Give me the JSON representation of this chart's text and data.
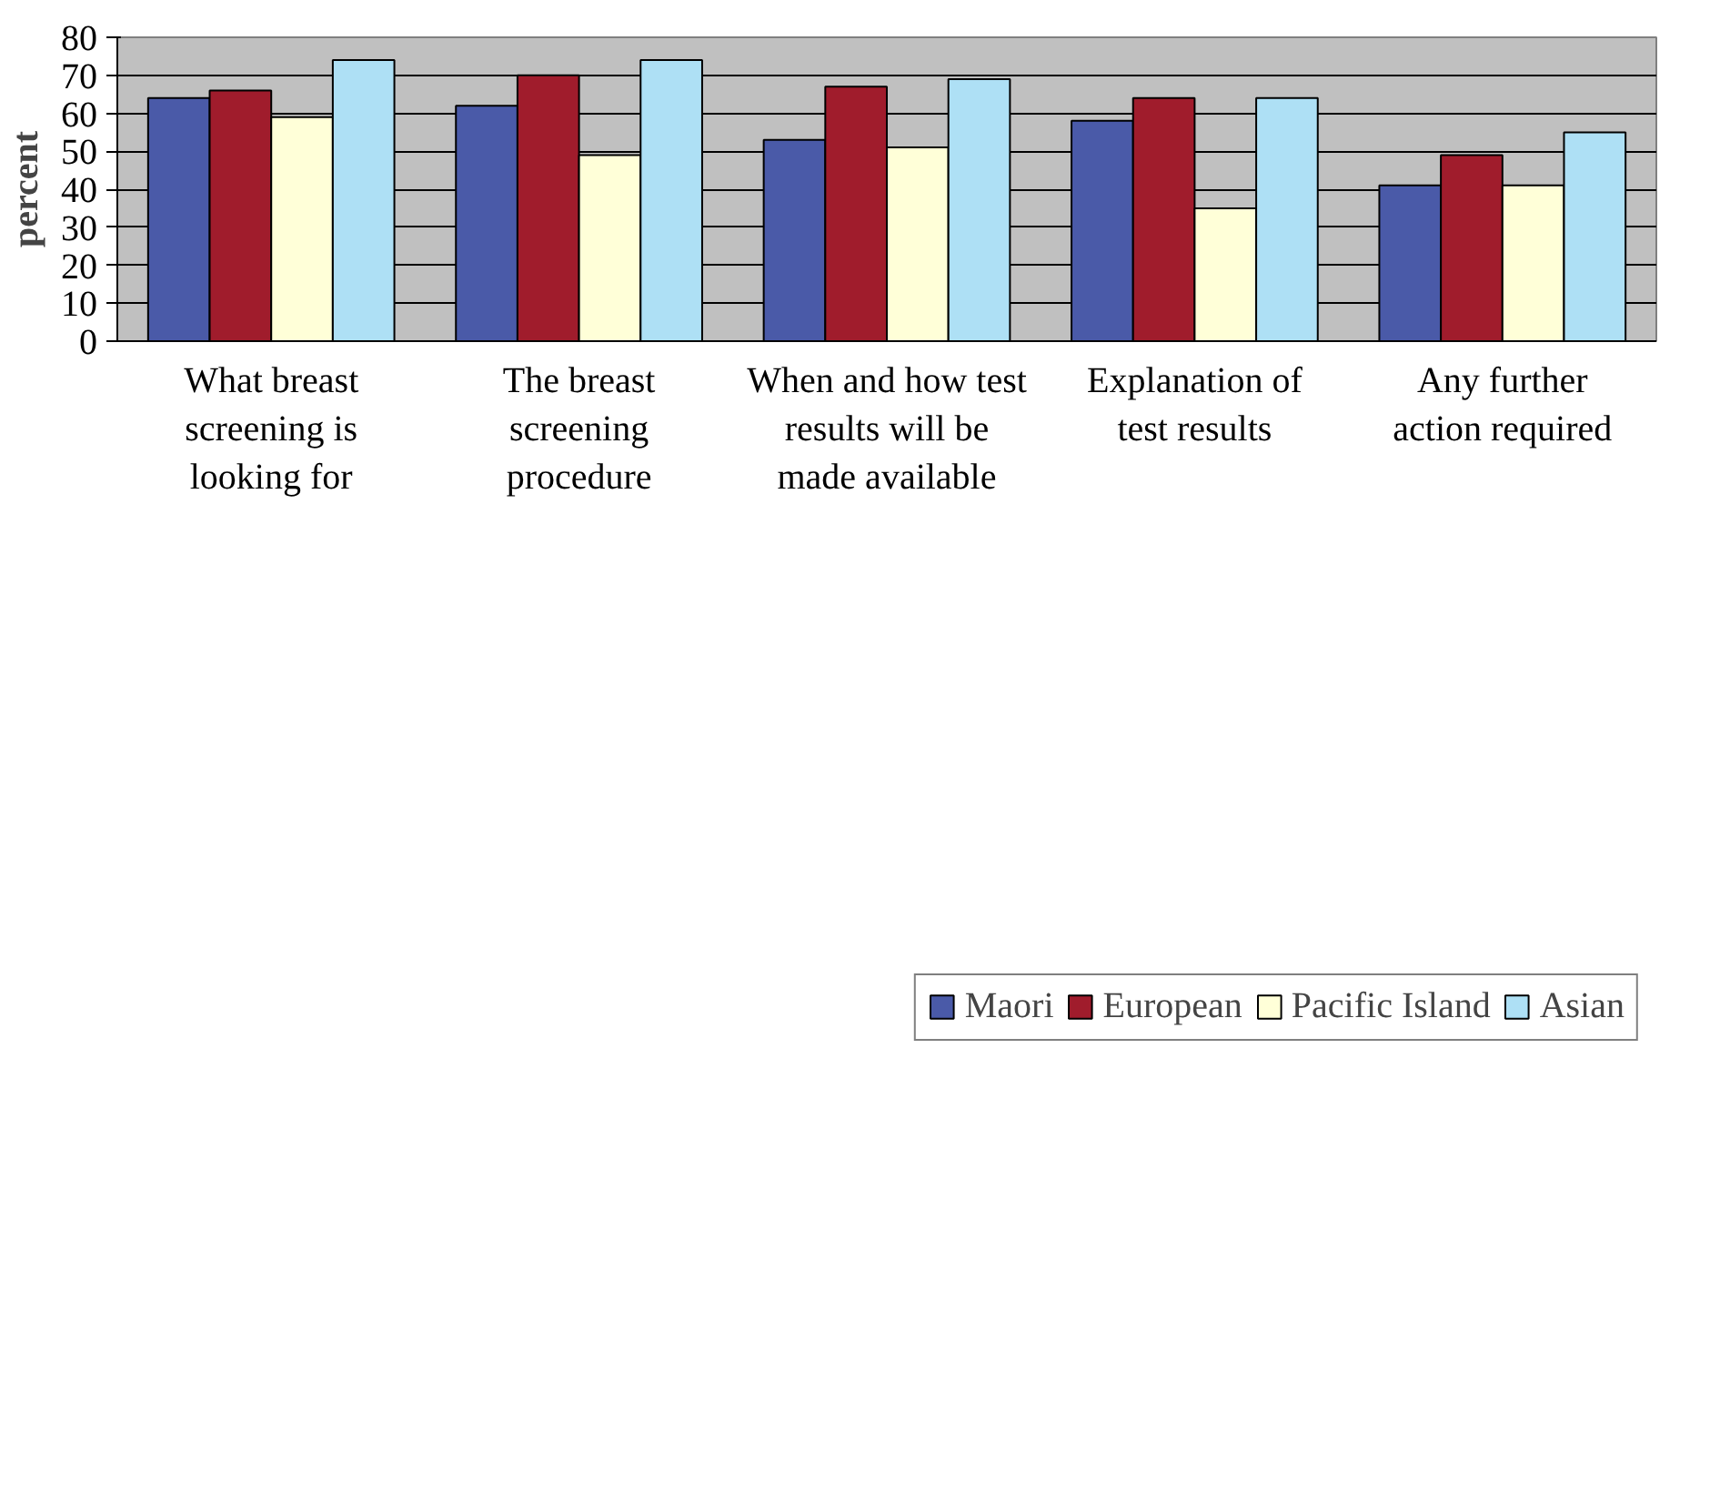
{
  "chart_data": {
    "type": "bar",
    "ylabel": "percent",
    "categories": [
      "What breast screening is looking for",
      "The breast screening procedure",
      "When and how test results will be made available",
      "Explanation of test results",
      "Any further action required"
    ],
    "series": [
      {
        "name": "Maori",
        "color": "#4a5aa8",
        "values": [
          64,
          62,
          53,
          58,
          41
        ]
      },
      {
        "name": "European",
        "color": "#a01c2c",
        "values": [
          66,
          70,
          67,
          64,
          49
        ]
      },
      {
        "name": "Pacific Island",
        "color": "#ffffd8",
        "values": [
          59,
          49,
          51,
          35,
          41
        ]
      },
      {
        "name": "Asian",
        "color": "#aee0f5",
        "values": [
          74,
          74,
          69,
          64,
          55
        ]
      }
    ],
    "ylim": [
      0,
      80
    ],
    "yticks": [
      0,
      10,
      20,
      30,
      40,
      50,
      60,
      70,
      80
    ],
    "grid": "y",
    "legend": "bottom"
  }
}
